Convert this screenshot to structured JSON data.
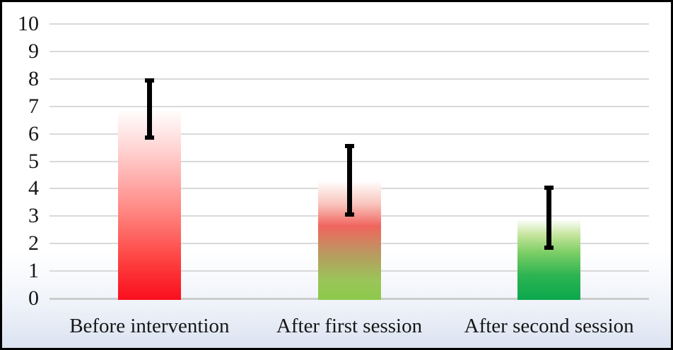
{
  "chart_data": {
    "type": "bar",
    "title": "",
    "xlabel": "",
    "ylabel": "",
    "legend": "none",
    "grid": "horizontal gridlines at every integer",
    "categories": [
      "Before intervention",
      "After first session",
      "After second session"
    ],
    "values": [
      6.9,
      4.3,
      2.95
    ],
    "error_bars": {
      "low": [
        5.8,
        3.0,
        1.8
      ],
      "high": [
        8.0,
        5.6,
        4.1
      ]
    },
    "ylim": [
      0,
      10
    ],
    "yticks": [
      0,
      1,
      2,
      3,
      4,
      5,
      6,
      7,
      8,
      9,
      10
    ],
    "bar_gradients": [
      [
        "#ffffff 0%",
        "#ffdedd 16%",
        "#ffb0ae 36%",
        "#ff7b76 58%",
        "#fd3a3a 82%",
        "#fa0f1e 100%"
      ],
      [
        "#ffffff 0%",
        "#f9c3bc 20%",
        "#f0655e 38%",
        "#b89b60 62%",
        "#9ac558 84%",
        "#8cc94c 100%"
      ],
      [
        "#ffffff 2%",
        "#c3e49a 22%",
        "#7ecf67 42%",
        "#2eb452 70%",
        "#0ba84d 100%"
      ]
    ],
    "error_bar_color": "#000000",
    "gridline_color": "#d9d9d9",
    "axis_line_color": "#cccccc",
    "text_color": "#161616"
  },
  "frame": {
    "border_color": "#000000",
    "background_top": "#ffffff",
    "background_bottom": "#dbe3f1"
  }
}
